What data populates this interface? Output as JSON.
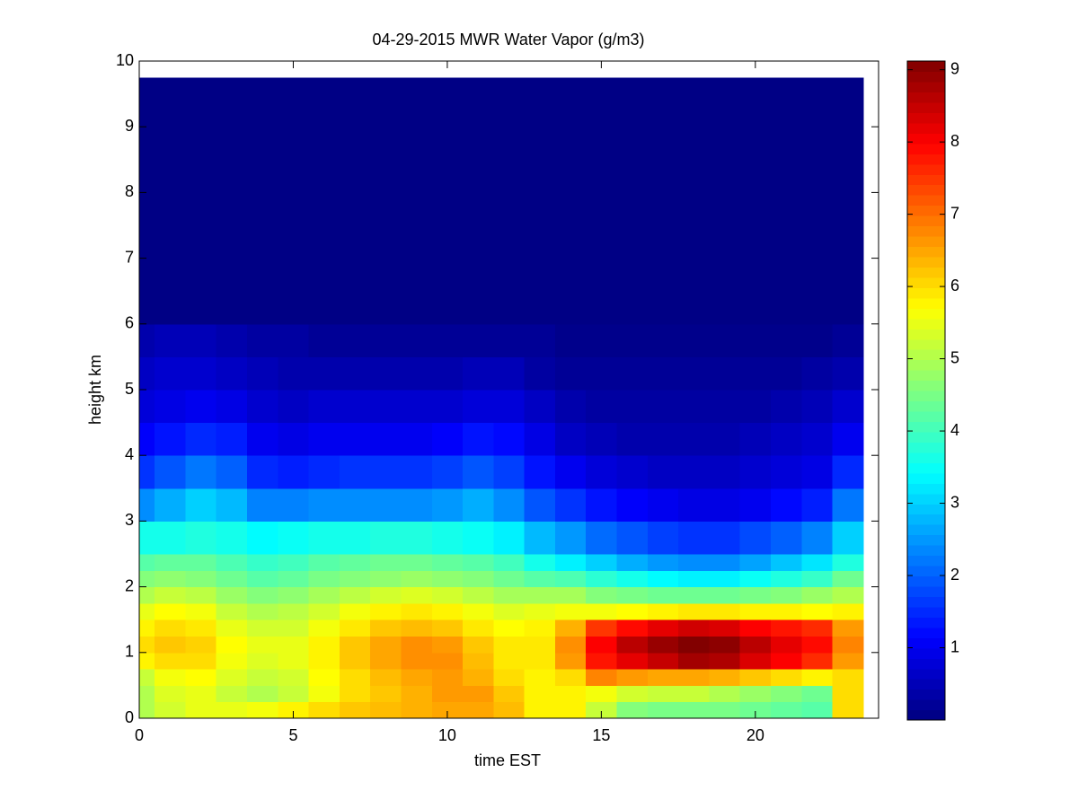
{
  "chart_data": {
    "type": "heatmap",
    "title": "04-29-2015 MWR Water Vapor (g/m3)",
    "x_label": "time EST",
    "y_label": "height km",
    "xlim": [
      0,
      24
    ],
    "ylim": [
      0,
      10
    ],
    "xticks": [
      0,
      5,
      10,
      15,
      20
    ],
    "yticks": [
      0,
      1,
      2,
      3,
      4,
      5,
      6,
      7,
      8,
      9,
      10
    ],
    "colormap": "jet",
    "clim": [
      0,
      9.12
    ],
    "cticks": [
      1,
      2,
      3,
      4,
      5,
      6,
      7,
      8,
      9
    ],
    "x_edges": [
      0,
      0.5,
      1.5,
      2.5,
      3.5,
      4.5,
      5.5,
      6.5,
      7.5,
      8.5,
      9.5,
      10.5,
      11.5,
      12.5,
      13.5,
      14.5,
      15.5,
      16.5,
      17.5,
      18.5,
      19.5,
      20.5,
      21.5,
      22.5,
      23.5
    ],
    "y_edges": [
      0,
      0.25,
      0.5,
      0.75,
      1,
      1.25,
      1.5,
      1.75,
      2,
      2.25,
      2.5,
      3,
      3.5,
      4,
      4.5,
      5,
      5.5,
      6,
      9.75
    ],
    "z": [
      [
        5.0,
        5.3,
        5.5,
        5.5,
        5.6,
        5.8,
        6.0,
        6.2,
        6.3,
        6.4,
        6.5,
        6.5,
        6.3,
        5.8,
        5.8,
        5.2,
        4.6,
        4.5,
        4.5,
        4.5,
        4.4,
        4.3,
        4.2,
        6.0
      ],
      [
        5.0,
        5.4,
        5.5,
        5.2,
        5.0,
        5.2,
        5.6,
        6.0,
        6.2,
        6.4,
        6.6,
        6.6,
        6.2,
        5.8,
        5.8,
        5.6,
        5.3,
        5.2,
        5.2,
        5.0,
        4.8,
        4.6,
        4.4,
        6.0
      ],
      [
        5.2,
        5.6,
        5.7,
        5.4,
        5.2,
        5.3,
        5.7,
        6.0,
        6.3,
        6.5,
        6.6,
        6.4,
        6.0,
        5.8,
        6.0,
        6.8,
        6.6,
        6.5,
        6.5,
        6.4,
        6.2,
        6.0,
        5.8,
        6.0
      ],
      [
        5.8,
        6.0,
        6.0,
        5.6,
        5.4,
        5.5,
        5.8,
        6.2,
        6.5,
        6.7,
        6.7,
        6.3,
        5.9,
        5.9,
        6.6,
        7.8,
        8.2,
        8.5,
        8.8,
        8.7,
        8.3,
        8.0,
        7.6,
        6.6
      ],
      [
        6.0,
        6.2,
        6.1,
        5.7,
        5.5,
        5.5,
        5.8,
        6.2,
        6.5,
        6.7,
        6.6,
        6.2,
        5.9,
        5.9,
        6.7,
        8.0,
        8.6,
        8.9,
        9.1,
        9.0,
        8.6,
        8.2,
        7.9,
        6.8
      ],
      [
        5.8,
        6.0,
        5.9,
        5.5,
        5.3,
        5.3,
        5.6,
        5.9,
        6.2,
        6.3,
        6.2,
        5.9,
        5.7,
        5.8,
        6.4,
        7.5,
        7.9,
        8.2,
        8.4,
        8.3,
        8.0,
        7.8,
        7.6,
        6.6
      ],
      [
        5.5,
        5.7,
        5.6,
        5.2,
        5.0,
        5.1,
        5.3,
        5.6,
        5.8,
        5.9,
        5.8,
        5.6,
        5.4,
        5.5,
        5.6,
        5.6,
        5.7,
        5.8,
        5.9,
        5.9,
        5.8,
        5.8,
        5.7,
        5.8
      ],
      [
        5.0,
        5.2,
        5.1,
        4.8,
        4.6,
        4.7,
        4.9,
        5.1,
        5.3,
        5.4,
        5.3,
        5.1,
        4.9,
        4.9,
        4.9,
        4.6,
        4.5,
        4.4,
        4.4,
        4.4,
        4.5,
        4.6,
        4.8,
        5.0
      ],
      [
        4.6,
        4.7,
        4.6,
        4.4,
        4.2,
        4.3,
        4.5,
        4.6,
        4.7,
        4.8,
        4.7,
        4.6,
        4.4,
        4.2,
        4.1,
        3.8,
        3.6,
        3.4,
        3.3,
        3.3,
        3.5,
        3.7,
        3.9,
        4.4
      ],
      [
        4.2,
        4.3,
        4.3,
        4.1,
        3.9,
        4.0,
        4.2,
        4.3,
        4.4,
        4.4,
        4.3,
        4.2,
        4.0,
        3.6,
        3.3,
        3.0,
        2.7,
        2.5,
        2.4,
        2.4,
        2.6,
        2.9,
        3.2,
        3.7
      ],
      [
        3.6,
        3.6,
        3.7,
        3.6,
        3.4,
        3.5,
        3.6,
        3.6,
        3.7,
        3.7,
        3.6,
        3.5,
        3.3,
        2.8,
        2.5,
        2.1,
        1.9,
        1.7,
        1.6,
        1.6,
        1.8,
        2.0,
        2.3,
        3.0
      ],
      [
        2.4,
        2.7,
        3.0,
        2.8,
        2.3,
        2.3,
        2.4,
        2.4,
        2.4,
        2.4,
        2.5,
        2.7,
        2.4,
        1.9,
        1.6,
        1.3,
        1.1,
        1.0,
        0.9,
        0.9,
        1.0,
        1.2,
        1.4,
        2.2
      ],
      [
        1.6,
        1.9,
        2.2,
        2.0,
        1.5,
        1.4,
        1.5,
        1.6,
        1.6,
        1.6,
        1.7,
        1.9,
        1.7,
        1.3,
        1.0,
        0.8,
        0.7,
        0.6,
        0.6,
        0.6,
        0.7,
        0.8,
        0.9,
        1.5
      ],
      [
        1.1,
        1.3,
        1.5,
        1.4,
        1.0,
        0.9,
        1.0,
        1.0,
        1.0,
        1.0,
        1.1,
        1.3,
        1.2,
        0.9,
        0.6,
        0.5,
        0.4,
        0.4,
        0.4,
        0.4,
        0.5,
        0.6,
        0.7,
        1.0
      ],
      [
        0.8,
        0.9,
        1.0,
        0.9,
        0.7,
        0.6,
        0.7,
        0.7,
        0.7,
        0.7,
        0.7,
        0.8,
        0.8,
        0.6,
        0.4,
        0.3,
        0.3,
        0.3,
        0.3,
        0.3,
        0.3,
        0.4,
        0.5,
        0.7
      ],
      [
        0.6,
        0.7,
        0.7,
        0.6,
        0.5,
        0.4,
        0.4,
        0.4,
        0.4,
        0.4,
        0.4,
        0.5,
        0.5,
        0.3,
        0.2,
        0.2,
        0.2,
        0.2,
        0.2,
        0.2,
        0.2,
        0.2,
        0.3,
        0.4
      ],
      [
        0.4,
        0.5,
        0.5,
        0.4,
        0.3,
        0.3,
        0.2,
        0.2,
        0.2,
        0.2,
        0.2,
        0.2,
        0.2,
        0.2,
        0.1,
        0.1,
        0.1,
        0.1,
        0.1,
        0.1,
        0.1,
        0.1,
        0.1,
        0.2
      ],
      [
        0.05,
        0.05,
        0.05,
        0.05,
        0.05,
        0.05,
        0.05,
        0.05,
        0.05,
        0.05,
        0.05,
        0.05,
        0.05,
        0.05,
        0.05,
        0.05,
        0.05,
        0.05,
        0.05,
        0.05,
        0.05,
        0.05,
        0.05,
        0.05
      ]
    ]
  }
}
